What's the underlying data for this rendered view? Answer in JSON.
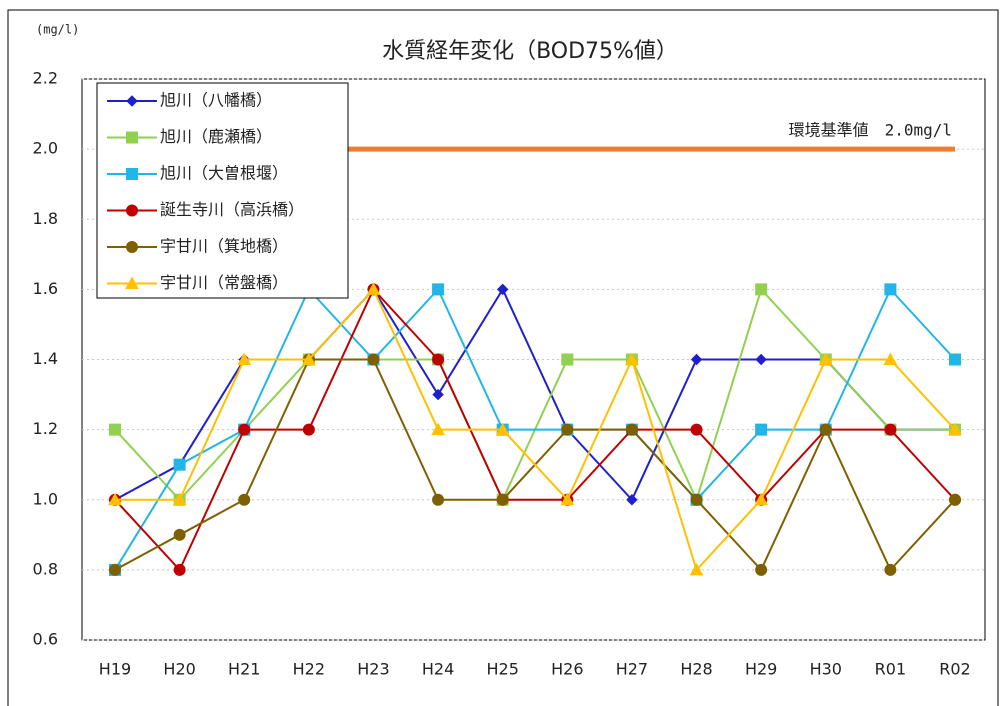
{
  "chart_data": {
    "type": "line",
    "title": "水質経年変化（BOD75%値）",
    "y_label": "(mg/l)",
    "categories": [
      "H19",
      "H20",
      "H21",
      "H22",
      "H23",
      "H24",
      "H25",
      "H26",
      "H27",
      "H28",
      "H29",
      "H30",
      "R01",
      "R02"
    ],
    "series": [
      {
        "name": "旭川（八幡橋）",
        "color": "#1f1fd0",
        "marker": "diamond",
        "values": [
          1.0,
          1.1,
          1.4,
          1.4,
          1.6,
          1.3,
          1.6,
          1.2,
          1.0,
          1.4,
          1.4,
          1.4,
          1.2,
          1.2
        ]
      },
      {
        "name": "旭川（鹿瀬橋）",
        "color": "#92d050",
        "marker": "square",
        "values": [
          1.2,
          1.0,
          1.2,
          1.4,
          1.4,
          1.4,
          1.0,
          1.4,
          1.4,
          1.0,
          1.6,
          1.4,
          1.2,
          1.2
        ]
      },
      {
        "name": "旭川（大曽根堰）",
        "color": "#21b5e8",
        "marker": "square",
        "values": [
          0.8,
          1.1,
          1.2,
          1.6,
          1.4,
          1.6,
          1.2,
          1.2,
          1.2,
          1.0,
          1.2,
          1.2,
          1.6,
          1.4
        ]
      },
      {
        "name": "誕生寺川（高浜橋）",
        "color": "#c00000",
        "marker": "circle",
        "values": [
          1.0,
          0.8,
          1.2,
          1.2,
          1.6,
          1.4,
          1.0,
          1.0,
          1.2,
          1.2,
          1.0,
          1.2,
          1.2,
          1.0
        ]
      },
      {
        "name": "宇甘川（箕地橋）",
        "color": "#7f6000",
        "marker": "circle",
        "values": [
          0.8,
          0.9,
          1.0,
          1.4,
          1.4,
          1.0,
          1.0,
          1.2,
          1.2,
          1.0,
          0.8,
          1.2,
          0.8,
          1.0
        ]
      },
      {
        "name": "宇甘川（常盤橋）",
        "color": "#ffc000",
        "marker": "triangle",
        "values": [
          1.0,
          1.0,
          1.4,
          1.4,
          1.6,
          1.2,
          1.2,
          1.0,
          1.4,
          0.8,
          1.0,
          1.4,
          1.4,
          1.2
        ]
      }
    ],
    "reference_line": {
      "value": 2,
      "label": "環境基準値　2.0mg/l",
      "color": "#ed7d31"
    },
    "ylim": [
      0.6,
      2.2
    ],
    "yticks": [
      0.6,
      0.8,
      {
        "value": 1,
        "label": "1.0"
      },
      1.2,
      1.4,
      1.6,
      1.8,
      {
        "value": 2,
        "label": "2.0"
      },
      2.2
    ],
    "grid": true
  }
}
